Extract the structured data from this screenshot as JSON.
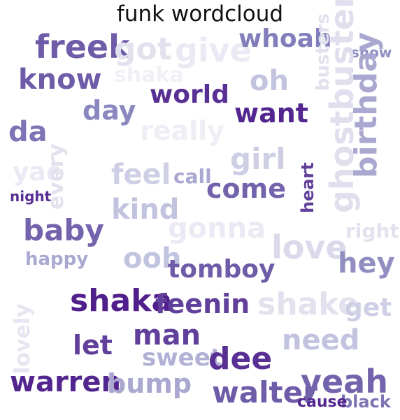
{
  "chart_data": {
    "type": "wordcloud",
    "title": "funk wordcloud",
    "colormap": "Purples",
    "words": [
      {
        "text": "freek",
        "weight": 0.9,
        "shade": 0.72
      },
      {
        "text": "got",
        "weight": 0.7,
        "shade": 0.2
      },
      {
        "text": "give",
        "weight": 0.75,
        "shade": 0.15
      },
      {
        "text": "whoah",
        "weight": 0.85,
        "shade": 0.62
      },
      {
        "text": "show",
        "weight": 0.5,
        "shade": 0.55
      },
      {
        "text": "know",
        "weight": 0.8,
        "shade": 0.72
      },
      {
        "text": "shaka",
        "weight": 0.6,
        "shade": 0.1
      },
      {
        "text": "oh",
        "weight": 0.7,
        "shade": 0.35
      },
      {
        "text": "busters",
        "weight": 0.6,
        "shade": 0.2
      },
      {
        "text": "world",
        "weight": 0.8,
        "shade": 0.85
      },
      {
        "text": "want",
        "weight": 0.85,
        "shade": 0.88
      },
      {
        "text": "day",
        "weight": 0.75,
        "shade": 0.58
      },
      {
        "text": "birthday",
        "weight": 0.9,
        "shade": 0.45
      },
      {
        "text": "really",
        "weight": 0.8,
        "shade": 0.12
      },
      {
        "text": "da",
        "weight": 0.8,
        "shade": 0.65
      },
      {
        "text": "girl",
        "weight": 0.8,
        "shade": 0.3
      },
      {
        "text": "ghostbusters",
        "weight": 0.9,
        "shade": 0.22
      },
      {
        "text": "yae",
        "weight": 0.6,
        "shade": 0.15
      },
      {
        "text": "feel",
        "weight": 0.75,
        "shade": 0.3
      },
      {
        "text": "call",
        "weight": 0.6,
        "shade": 0.45
      },
      {
        "text": "come",
        "weight": 0.75,
        "shade": 0.7
      },
      {
        "text": "every",
        "weight": 0.6,
        "shade": 0.2
      },
      {
        "text": "kind",
        "weight": 0.7,
        "shade": 0.35
      },
      {
        "text": "heart",
        "weight": 0.5,
        "shade": 0.8
      },
      {
        "text": "night",
        "weight": 0.5,
        "shade": 0.85
      },
      {
        "text": "baby",
        "weight": 0.85,
        "shade": 0.7
      },
      {
        "text": "gonna",
        "weight": 0.75,
        "shade": 0.15
      },
      {
        "text": "love",
        "weight": 0.8,
        "shade": 0.25
      },
      {
        "text": "right",
        "weight": 0.6,
        "shade": 0.2
      },
      {
        "text": "ooh",
        "weight": 0.7,
        "shade": 0.35
      },
      {
        "text": "tomboy",
        "weight": 0.8,
        "shade": 0.72
      },
      {
        "text": "hey",
        "weight": 0.75,
        "shade": 0.55
      },
      {
        "text": "happy",
        "weight": 0.5,
        "shade": 0.45
      },
      {
        "text": "shaka",
        "weight": 0.85,
        "shade": 0.9
      },
      {
        "text": "feenin",
        "weight": 0.85,
        "shade": 0.8
      },
      {
        "text": "shake",
        "weight": 0.85,
        "shade": 0.2
      },
      {
        "text": "get",
        "weight": 0.7,
        "shade": 0.3
      },
      {
        "text": "lovely",
        "weight": 0.6,
        "shade": 0.18
      },
      {
        "text": "man",
        "weight": 0.8,
        "shade": 0.8
      },
      {
        "text": "need",
        "weight": 0.75,
        "shade": 0.35
      },
      {
        "text": "let",
        "weight": 0.7,
        "shade": 0.8
      },
      {
        "text": "sweet",
        "weight": 0.6,
        "shade": 0.42
      },
      {
        "text": "dee",
        "weight": 0.8,
        "shade": 0.85
      },
      {
        "text": "warren",
        "weight": 0.8,
        "shade": 0.88
      },
      {
        "text": "bump",
        "weight": 0.75,
        "shade": 0.45
      },
      {
        "text": "walter",
        "weight": 0.85,
        "shade": 0.72
      },
      {
        "text": "yeah",
        "weight": 0.85,
        "shade": 0.7
      },
      {
        "text": "black",
        "weight": 0.45,
        "shade": 0.65
      },
      {
        "text": "cause",
        "weight": 0.45,
        "shade": 0.88
      }
    ]
  }
}
